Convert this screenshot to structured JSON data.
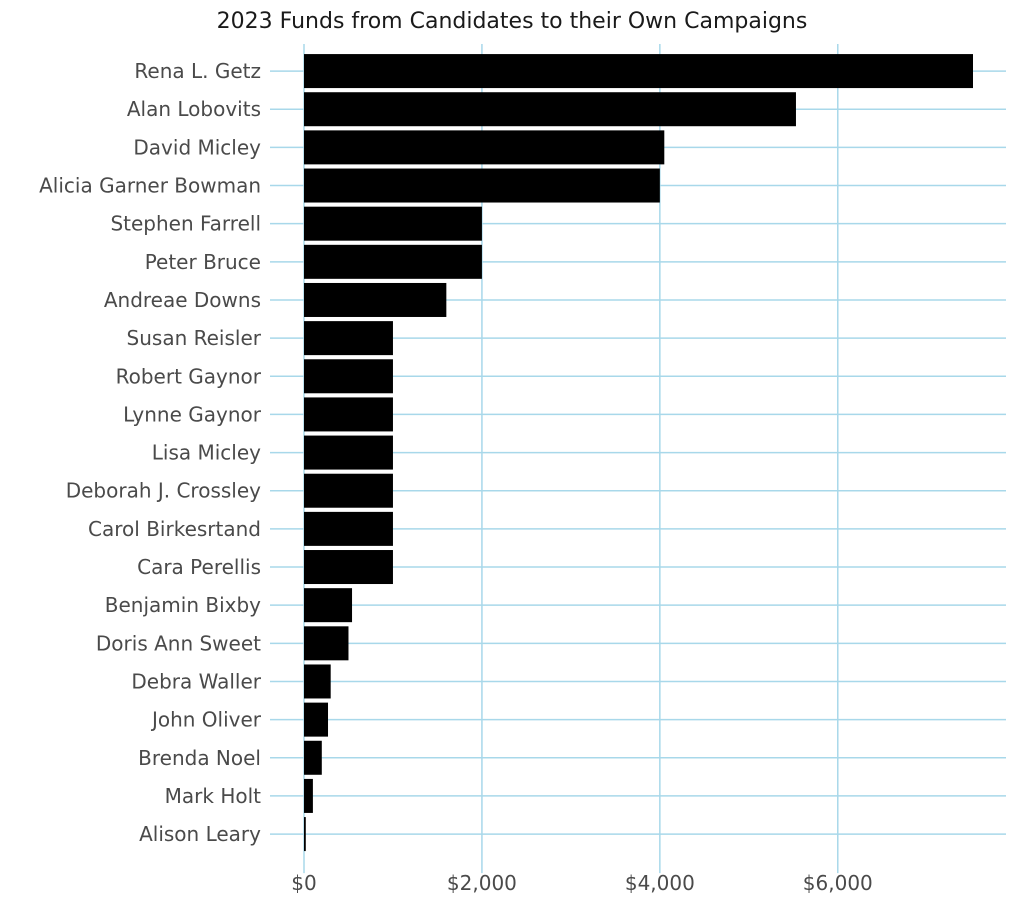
{
  "chart_data": {
    "type": "bar",
    "orientation": "horizontal",
    "title": "2023 Funds from Candidates to their Own Campaigns",
    "xlabel": "",
    "ylabel": "",
    "categories": [
      "Rena L. Getz",
      "Alan Lobovits",
      "David Micley",
      "Alicia Garner Bowman",
      "Stephen Farrell",
      "Peter Bruce",
      "Andreae Downs",
      "Susan Reisler",
      "Robert Gaynor",
      "Lynne Gaynor",
      "Lisa Micley",
      "Deborah J. Crossley",
      "Carol Birkesrtand",
      "Cara Perellis",
      "Benjamin Bixby",
      "Doris Ann Sweet",
      "Debra Waller",
      "John Oliver",
      "Brenda Noel",
      "Mark Holt",
      "Alison Leary"
    ],
    "values": [
      7520,
      5530,
      4050,
      4000,
      2000,
      2000,
      1600,
      1000,
      1000,
      1000,
      1000,
      1000,
      1000,
      1000,
      540,
      500,
      300,
      270,
      200,
      100,
      20
    ],
    "xlim": [
      0,
      7520
    ],
    "x_ticks": [
      0,
      2000,
      4000,
      6000
    ],
    "x_tick_labels": [
      "$0",
      "$2,000",
      "$4,000",
      "$6,000"
    ],
    "grid": true,
    "bar_color": "#000000",
    "grid_color": "#a8d8ea",
    "background": "#ffffff"
  }
}
